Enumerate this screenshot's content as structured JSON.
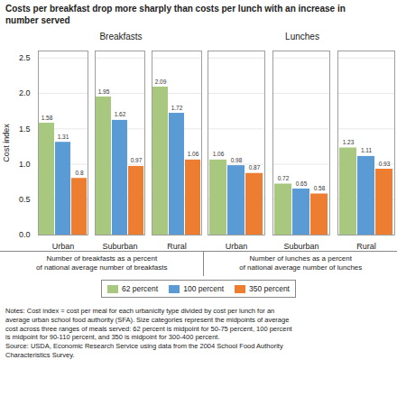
{
  "title": "Costs per breakfast drop more sharply than costs per lunch with an increase in\nnumber served",
  "caption": "Notes: Cost index = cost per meal for each urbanicity type divided by cost per lunch for an\naverage urban school food authority (SFA). Size categories represent the midpoints of average\ncost across three ranges of meals served: 62 percent is midpoint for 50-75 percent, 100 percent\nis midpoint for 90-110 percent, and 350 is midpoint for 300-400 percent.\nSource: USDA, Economic Research Service using data from the 2004 School Food Authority\nCharacteristics Survey.",
  "chart_data": [
    {
      "type": "bar",
      "title": "Breakfasts",
      "xlabel": "Number of breakfasts as a percent\nof national average number of breakfasts",
      "ylabel": "Cost index",
      "categories": [
        "Urban",
        "Suburban",
        "Rural"
      ],
      "series": [
        {
          "name": "62 percent",
          "color": "#a8c880",
          "values": [
            1.58,
            1.95,
            2.09
          ]
        },
        {
          "name": "100 percent",
          "color": "#5b9bd5",
          "values": [
            1.31,
            1.62,
            1.72
          ]
        },
        {
          "name": "350 percent",
          "color": "#ed7d31",
          "values": [
            0.8,
            0.97,
            1.06
          ]
        }
      ],
      "ylim": [
        0,
        2.6
      ],
      "yticks": [
        {
          "value": 0,
          "label": "0.0"
        },
        0.5,
        {
          "value": 1.0,
          "label": "1.0"
        },
        1.5,
        {
          "value": 2.0,
          "label": "2.0"
        },
        2.5
      ],
      "grid": true,
      "data_labels": true,
      "legend": "bottom"
    },
    {
      "type": "bar",
      "title": "Lunches",
      "xlabel": "Number of lunches as a percent\nof national average number of lunches",
      "categories": [
        "Urban",
        "Suburban",
        "Rural"
      ],
      "series": [
        {
          "name": "62 percent",
          "color": "#a8c880",
          "values": [
            1.06,
            0.72,
            1.23
          ]
        },
        {
          "name": "100 percent",
          "color": "#5b9bd5",
          "values": [
            0.98,
            0.65,
            1.11
          ]
        },
        {
          "name": "350 percent",
          "color": "#ed7d31",
          "values": [
            0.87,
            0.58,
            0.93
          ]
        }
      ],
      "ylim": [
        0,
        2.6
      ],
      "yticks": [
        0,
        0.5,
        1.0,
        1.5,
        2.0,
        2.5
      ],
      "grid": true,
      "data_labels": true,
      "tick_labels": "x"
    }
  ]
}
